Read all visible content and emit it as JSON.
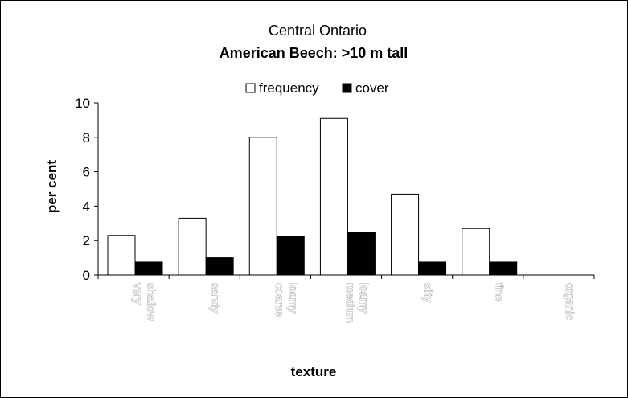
{
  "chart_data": {
    "type": "bar",
    "title": "Central Ontario",
    "subtitle": "American Beech: >10 m tall",
    "xlabel": "texture",
    "ylabel": "per cent",
    "categories": [
      [
        "very",
        "shallow"
      ],
      [
        "sandy"
      ],
      [
        "coarse",
        "loamy"
      ],
      [
        "medium",
        "loamy"
      ],
      [
        "silty"
      ],
      [
        "fine"
      ],
      [
        "organic"
      ]
    ],
    "series": [
      {
        "name": "frequency",
        "color": "#ffffff",
        "values": [
          2.3,
          3.3,
          8.0,
          9.1,
          4.7,
          2.7,
          0
        ]
      },
      {
        "name": "cover",
        "color": "#000000",
        "values": [
          0.75,
          1.0,
          2.25,
          2.5,
          0.75,
          0.75,
          0
        ]
      }
    ],
    "ylim": [
      0,
      10
    ],
    "yticks": [
      "0",
      "2",
      "4",
      "6",
      "8",
      "10"
    ],
    "legend_position": "top-center",
    "grid": false
  }
}
